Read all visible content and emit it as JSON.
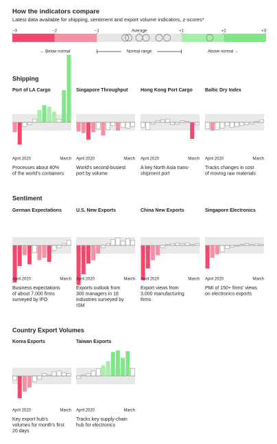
{
  "header": {
    "title": "How the indicators compare",
    "subtitle": "Latest data available for shipping, sentiment and export volume indicators, z-scores*"
  },
  "scale": {
    "xlim": [
      -3,
      3
    ],
    "ticks": [
      {
        "value": -3,
        "label": "−3"
      },
      {
        "value": -2,
        "label": "−2"
      },
      {
        "value": -1,
        "label": "−1"
      },
      {
        "value": 1,
        "label": "+1"
      },
      {
        "value": 2,
        "label": "+2"
      },
      {
        "value": 3,
        "label": "+3"
      }
    ],
    "average": {
      "value": 0,
      "label": "Average"
    },
    "colors": [
      "#f2486b",
      "#f590a5",
      "#e6e6e6",
      "#a6eeaa",
      "#80e688"
    ],
    "markers": [
      -0.33,
      -0.25,
      0,
      0.16,
      0.47,
      0.66,
      1.67
    ],
    "below_label": "← Below normal",
    "range_label": "Normal range",
    "above_label": "Above normal →"
  },
  "sections": [
    {
      "title": "Shipping",
      "chart_data": [
        {
          "type": "bar",
          "title": "Port of LA Cargo",
          "categories": [
            "April 2020",
            null,
            null,
            null,
            null,
            null,
            null,
            null,
            null,
            null,
            null,
            "March"
          ],
          "values": [
            -1.2,
            -2.7,
            -0.5,
            -0.3,
            0.4,
            1.5,
            2.1,
            1.9,
            1.3,
            0.4,
            3.9,
            8.2
          ],
          "ylim": [
            -3,
            8
          ],
          "description": [
            "Processes about 40%",
            "of the world's containers"
          ]
        },
        {
          "type": "bar",
          "title": "Singapore Throughput",
          "categories": [
            "April 2020",
            null,
            null,
            null,
            null,
            null,
            null,
            null,
            null,
            null,
            null,
            "March"
          ],
          "values": [
            -1.1,
            -1.3,
            -2.1,
            -1.2,
            -0.8,
            -1.6,
            -0.9,
            -0.4,
            -1.0,
            -0.6,
            -0.7,
            -0.5
          ],
          "ylim": [
            -3,
            8
          ],
          "description": [
            "World's second-busiest",
            "port by volume"
          ]
        },
        {
          "type": "bar",
          "title": "Hong Kong Port Cargo",
          "categories": [
            "April 2020",
            null,
            null,
            null,
            null,
            null,
            null,
            null,
            null,
            null,
            null,
            "March"
          ],
          "values": [
            -0.6,
            -0.9,
            -0.2,
            0.2,
            0.3,
            0.4,
            -0.3,
            -0.2,
            0.2,
            0.1,
            -2.0,
            -0.3
          ],
          "ylim": [
            -3,
            8
          ],
          "description": [
            "A key North Asia trans-",
            "shipment port"
          ]
        },
        {
          "type": "bar",
          "title": "Baltic Dry Index",
          "categories": [
            "April 2020",
            null,
            null,
            null,
            null,
            null,
            null,
            null,
            null,
            null,
            null,
            "March"
          ],
          "values": [
            -0.8,
            -1.0,
            -0.9,
            -0.7,
            -0.4,
            -0.6,
            -0.5,
            -0.4,
            -0.3,
            -0.2,
            0.1,
            0.3
          ],
          "ylim": [
            -3,
            8
          ],
          "description": [
            "Tracks changes in cost",
            "of moving raw materials"
          ]
        }
      ]
    },
    {
      "title": "Sentiment",
      "chart_data": [
        {
          "type": "bar",
          "title": "German Expectations",
          "categories": [
            "April 2020",
            null,
            null,
            null,
            null,
            null,
            null,
            null,
            null,
            null,
            null,
            "March"
          ],
          "values": [
            -4.5,
            -2.5,
            -1.2,
            -2.3,
            -0.9,
            -1.8,
            -1.5,
            -2.0,
            -0.6,
            -0.3,
            0.2,
            0.6
          ],
          "ylim": [
            -5,
            2
          ],
          "description": [
            "Business expectations",
            "of about 7,000 firms",
            "surveyed by IFO"
          ]
        },
        {
          "type": "bar",
          "title": "U.S. New Exports",
          "categories": [
            "April 2020",
            null,
            null,
            null,
            null,
            null,
            null,
            null,
            null,
            null,
            null,
            "March"
          ],
          "values": [
            -4.8,
            -3.5,
            -2.2,
            -1.8,
            -1.0,
            -0.3,
            0.2,
            0.7,
            0.9,
            0.5,
            0.8,
            0.6
          ],
          "ylim": [
            -5,
            2
          ],
          "description": [
            "Exports outlook from",
            "300 managers in 18",
            "industries surveyed by",
            "ISM"
          ]
        },
        {
          "type": "bar",
          "title": "China New Exports",
          "categories": [
            "April 2020",
            null,
            null,
            null,
            null,
            null,
            null,
            null,
            null,
            null,
            null,
            "March"
          ],
          "values": [
            -4.2,
            -2.8,
            -1.8,
            -1.2,
            -0.3,
            0.1,
            0.2,
            0.3,
            0.2,
            0.3,
            0.1,
            0.2
          ],
          "ylim": [
            -5,
            2
          ],
          "description": [
            "Export views from",
            "3,000 manufacturing",
            "firms"
          ]
        },
        {
          "type": "bar",
          "title": "Singapore Electronics",
          "categories": [
            "April 2020",
            null,
            null,
            null,
            null,
            null,
            null,
            null,
            null,
            null,
            null,
            "March"
          ],
          "values": [
            -2.8,
            -1.5,
            -1.1,
            -0.8,
            -0.4,
            -0.2,
            -0.1,
            0.1,
            0.2,
            0.1,
            0.2,
            0.1
          ],
          "ylim": [
            -5,
            2
          ],
          "description": [
            "PMI of 150+ firms' views",
            "on electronics exports"
          ]
        }
      ]
    },
    {
      "title": "Country Export Volumes",
      "chart_data": [
        {
          "type": "bar",
          "title": "Korea Exports",
          "categories": [
            "April 2020",
            null,
            null,
            null,
            null,
            null,
            null,
            null,
            null,
            null,
            null,
            "March"
          ],
          "values": [
            -0.5,
            -2.7,
            -1.9,
            -1.4,
            -0.7,
            -0.4,
            0.3,
            0.1,
            0.5,
            0.6,
            0.4,
            0.3
          ],
          "ylim": [
            -3,
            4
          ],
          "description": [
            "Key export hub's",
            "volumes for month's first",
            "20 days"
          ]
        },
        {
          "type": "bar",
          "title": "Taiwan Exports",
          "categories": [
            "April 2020",
            null,
            null,
            null,
            null,
            null,
            null,
            null,
            null,
            null,
            null,
            "March"
          ],
          "values": [
            -0.3,
            0.1,
            0.3,
            0.6,
            0.9,
            1.3,
            1.8,
            2.9,
            3.1,
            2.2,
            3.0,
            0.9
          ],
          "ylim": [
            -3,
            4
          ],
          "description": [
            "Tracks key supply-chain",
            "hub for electronics"
          ]
        }
      ]
    }
  ]
}
